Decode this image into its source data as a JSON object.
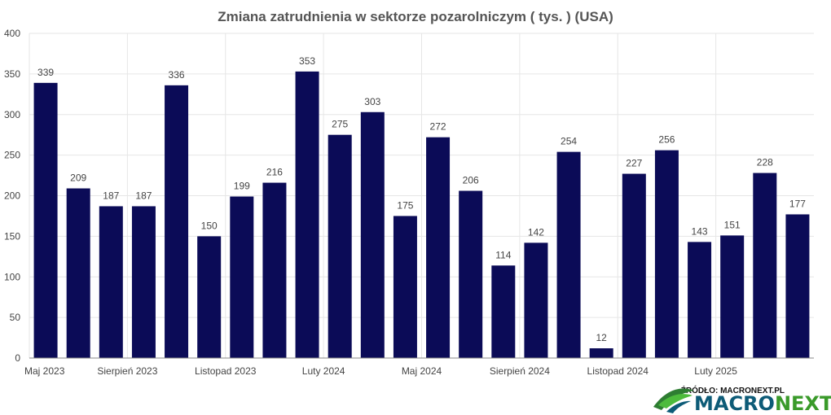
{
  "chart_data": {
    "type": "bar",
    "title": "Zmiana zatrudnienia w sektorze pozarolniczym ( tys. ) (USA)",
    "xlabel": "",
    "ylabel": "",
    "ylim": [
      0,
      400
    ],
    "y_ticks": [
      0,
      50,
      100,
      150,
      200,
      250,
      300,
      350,
      400
    ],
    "grid": true,
    "bar_color": "#0b0b57",
    "categories": [
      "Maj 2023",
      "",
      "",
      "Sierpień 2023",
      "",
      "",
      "Listopad 2023",
      "",
      "",
      "Luty 2024",
      "",
      "",
      "Maj 2024",
      "",
      "",
      "Sierpień 2024",
      "",
      "",
      "Listopad 2024",
      "",
      "",
      "Luty 2025",
      "",
      ""
    ],
    "values": [
      339,
      209,
      187,
      187,
      336,
      150,
      199,
      216,
      353,
      275,
      303,
      175,
      272,
      206,
      114,
      142,
      254,
      12,
      227,
      256,
      143,
      151,
      228,
      177
    ]
  },
  "branding": {
    "source": "ŹRÓDŁO: MACRONEXT.PL",
    "logo_part1": "MACRO",
    "logo_part2": "NEXT",
    "logo_icon": "swoosh-logo-icon",
    "colors": {
      "primary": "#0d5b77",
      "accent": "#3a9a2a"
    }
  }
}
